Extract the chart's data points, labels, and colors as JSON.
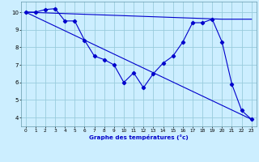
{
  "title": "Graphe des températures (°c)",
  "background_color": "#cceeff",
  "grid_color": "#99ccdd",
  "line_color": "#0000cc",
  "xlim": [
    -0.5,
    23.5
  ],
  "ylim": [
    3.5,
    10.6
  ],
  "xticks": [
    0,
    1,
    2,
    3,
    4,
    5,
    6,
    7,
    8,
    9,
    10,
    11,
    12,
    13,
    14,
    15,
    16,
    17,
    18,
    19,
    20,
    21,
    22,
    23
  ],
  "yticks": [
    4,
    5,
    6,
    7,
    8,
    9,
    10
  ],
  "series1_marked": {
    "x": [
      0,
      1,
      2,
      3,
      4,
      5,
      6,
      7,
      8,
      9,
      10,
      11,
      12,
      13,
      14,
      15,
      16,
      17,
      18,
      19,
      20,
      21,
      22,
      23
    ],
    "y": [
      10,
      10,
      10.15,
      10.2,
      9.5,
      9.5,
      8.4,
      7.5,
      7.3,
      7.0,
      6.0,
      6.55,
      5.7,
      6.5,
      7.1,
      7.5,
      8.3,
      9.4,
      9.4,
      9.6,
      8.3,
      5.9,
      4.4,
      3.9
    ]
  },
  "series2_diag": {
    "x": [
      0,
      23
    ],
    "y": [
      10,
      3.9
    ]
  },
  "series3_flat": {
    "x": [
      0,
      20,
      21,
      22,
      23
    ],
    "y": [
      10,
      9.6,
      9.6,
      9.6,
      9.6
    ]
  }
}
